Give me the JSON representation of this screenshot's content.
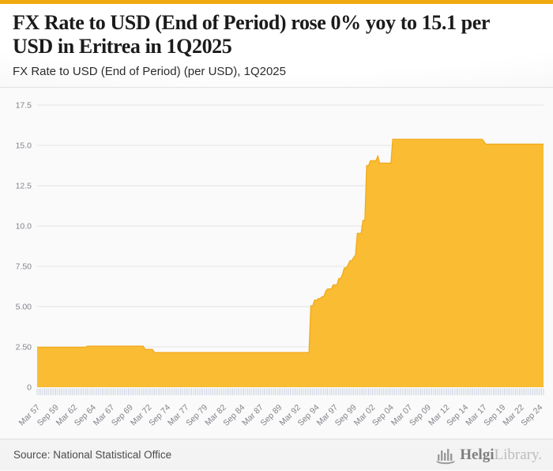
{
  "accent": {
    "top_bar_color": "#f0a90e"
  },
  "header": {
    "title_line1": "FX Rate to USD (End of Period) rose 0% yoy to 15.1 per",
    "title_line2": "USD in Eritrea in 1Q2025",
    "subtitle": "FX Rate to USD (End of Period) (per USD), 1Q2025"
  },
  "footer": {
    "source": "Source: National Statistical Office",
    "brand_name": "Helgi",
    "brand_suffix": "Library."
  },
  "chart_data": {
    "type": "area",
    "title": "FX Rate to USD (End of Period) (per USD), Eritrea",
    "frequency": "quarterly",
    "x_start": "1957Q1",
    "x_end": "2025Q1",
    "latest_value": 15.1,
    "ylim": [
      0,
      17.5
    ],
    "ytick_values": [
      17.5,
      15,
      12.5,
      10,
      7.5,
      5,
      2.5,
      0
    ],
    "ytick_labels": [
      "17.5",
      "15.0",
      "12.5",
      "10.0",
      "7.50",
      "5.00",
      "2.50",
      "0"
    ],
    "xtick_every_quarters": 10,
    "xtick_labels": [
      "Mar 57",
      "Sep 59",
      "Mar 62",
      "Sep 64",
      "Mar 67",
      "Sep 69",
      "Mar 72",
      "Sep 74",
      "Mar 77",
      "Sep 79",
      "Mar 82",
      "Sep 84",
      "Mar 87",
      "Sep 89",
      "Mar 92",
      "Sep 94",
      "Mar 97",
      "Sep 99",
      "Mar 02",
      "Sep 04",
      "Mar 07",
      "Sep 09",
      "Mar 12",
      "Sep 14",
      "Mar 17",
      "Sep 19",
      "Mar 22",
      "Sep 24"
    ],
    "grid": true,
    "legend": false,
    "series_name": "FX Rate to USD (End of Period)",
    "segments": [
      {
        "from": "1957Q1",
        "to": "1963Q3",
        "value": 2.48
      },
      {
        "from": "1963Q4",
        "to": "1971Q2",
        "value": 2.55
      },
      {
        "from": "1971Q3",
        "to": "1972Q3",
        "value": 2.35
      },
      {
        "from": "1972Q4",
        "to": "1993Q3",
        "value": 2.15
      },
      {
        "from": "1993Q4",
        "to": "1994Q1",
        "value": 5.05
      },
      {
        "from": "1994Q2",
        "to": "1994Q3",
        "value": 5.4
      },
      {
        "from": "1994Q4",
        "to": "1995Q1",
        "value": 5.5
      },
      {
        "from": "1995Q2",
        "to": "1995Q3",
        "value": 5.62
      },
      {
        "from": "1995Q4",
        "to": "1995Q4",
        "value": 5.95
      },
      {
        "from": "1996Q1",
        "to": "1996Q3",
        "value": 6.1
      },
      {
        "from": "1996Q4",
        "to": "1997Q2",
        "value": 6.35
      },
      {
        "from": "1997Q3",
        "to": "1997Q4",
        "value": 6.75
      },
      {
        "from": "1998Q1",
        "to": "1998Q1",
        "value": 7.0
      },
      {
        "from": "1998Q2",
        "to": "1998Q3",
        "value": 7.4
      },
      {
        "from": "1998Q4",
        "to": "1998Q4",
        "value": 7.6
      },
      {
        "from": "1999Q1",
        "to": "1999Q2",
        "value": 7.85
      },
      {
        "from": "1999Q3",
        "to": "1999Q3",
        "value": 8.05
      },
      {
        "from": "1999Q4",
        "to": "1999Q4",
        "value": 8.2
      },
      {
        "from": "2000Q1",
        "to": "2000Q3",
        "value": 9.55
      },
      {
        "from": "2000Q4",
        "to": "2001Q1",
        "value": 10.35
      },
      {
        "from": "2001Q2",
        "to": "2001Q3",
        "value": 13.75
      },
      {
        "from": "2001Q4",
        "to": "2002Q3",
        "value": 14.05
      },
      {
        "from": "2002Q4",
        "to": "2002Q4",
        "value": 14.35
      },
      {
        "from": "2003Q1",
        "to": "2004Q3",
        "value": 13.9
      },
      {
        "from": "2004Q4",
        "to": "2016Q4",
        "value": 15.38
      },
      {
        "from": "2017Q1",
        "to": "2017Q1",
        "value": 15.25
      },
      {
        "from": "2017Q2",
        "to": "2025Q1",
        "value": 15.08
      }
    ],
    "colors": {
      "area_fill": "#f9bc33",
      "area_stroke": "#f1a81a",
      "grid": "#e4e4e4",
      "tick": "#c7cedf",
      "axis_label": "#82838a",
      "background": "#fafafa"
    }
  }
}
